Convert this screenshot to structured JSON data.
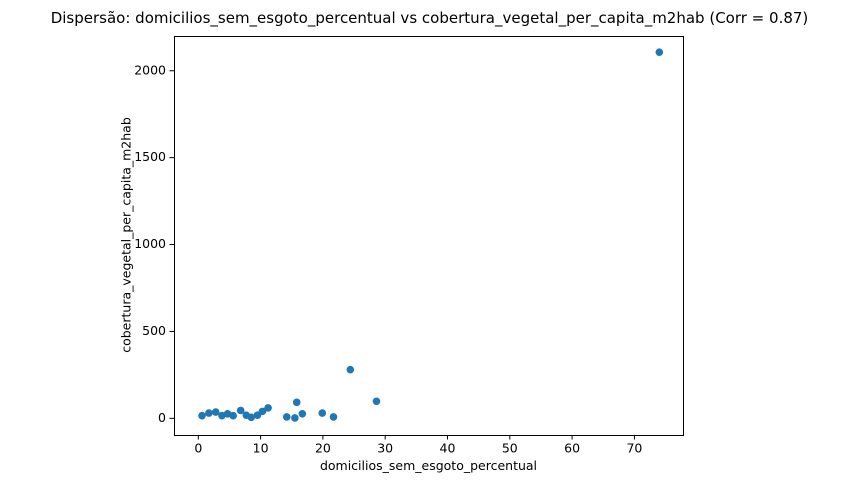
{
  "chart_data": {
    "type": "scatter",
    "title": "Dispersão: domicilios_sem_esgoto_percentual vs cobertura_vegetal_per_capita_m2hab (Corr = 0.87)",
    "xlabel": "domicilios_sem_esgoto_percentual",
    "ylabel": "cobertura_vegetal_per_capita_m2hab",
    "correlation": 0.87,
    "xlim": [
      -3.9,
      77.8
    ],
    "ylim": [
      -96,
      2200
    ],
    "x_ticks": [
      0,
      10,
      20,
      30,
      40,
      50,
      60,
      70
    ],
    "y_ticks": [
      0,
      500,
      1000,
      1500,
      2000
    ],
    "grid": false,
    "legend": false,
    "point_color": "#1f77b4",
    "axis_color": "#000000",
    "background_color": "#ffffff",
    "points": [
      [
        0.6,
        15
      ],
      [
        1.7,
        30
      ],
      [
        2.8,
        36
      ],
      [
        3.8,
        15
      ],
      [
        4.7,
        26
      ],
      [
        5.6,
        15
      ],
      [
        6.8,
        45
      ],
      [
        7.7,
        18
      ],
      [
        8.5,
        6
      ],
      [
        9.5,
        18
      ],
      [
        10.3,
        40
      ],
      [
        11.2,
        60
      ],
      [
        14.2,
        8
      ],
      [
        15.5,
        2
      ],
      [
        15.8,
        92
      ],
      [
        16.7,
        26
      ],
      [
        19.9,
        30
      ],
      [
        21.7,
        8
      ],
      [
        24.4,
        280
      ],
      [
        28.6,
        98
      ],
      [
        74.0,
        2107
      ]
    ]
  }
}
